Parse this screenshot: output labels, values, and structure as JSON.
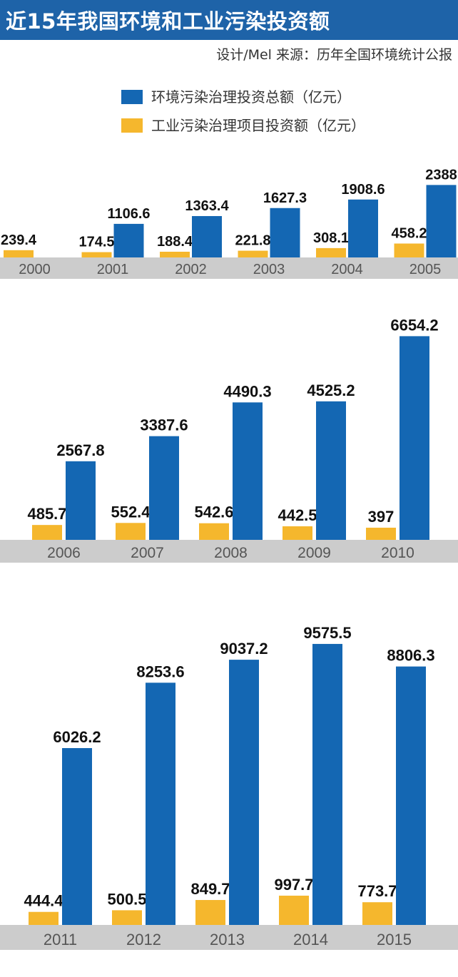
{
  "title": "近15年我国环境和工业污染投资额",
  "credit": "设计/Mel   来源：历年全国环境统计公报",
  "colors": {
    "total": "#1467b3",
    "industrial": "#f5b72d",
    "axis_band": "#cccccc",
    "title_bg": "#1e63a8"
  },
  "chart_data": [
    {
      "type": "bar",
      "categories": [
        "2000",
        "2001",
        "2002",
        "2003",
        "2004",
        "2005"
      ],
      "series": [
        {
          "name": "工业污染治理项目投资额（亿元）",
          "values": [
            239.4,
            174.5,
            188.4,
            221.8,
            308.1,
            458.2
          ],
          "labels": [
            "239.4",
            "174.5",
            "188.4",
            "221.8",
            "308.1",
            "458.2"
          ]
        },
        {
          "name": "环境污染治理投资总额（亿元）",
          "values": [
            null,
            1106.6,
            1363.4,
            1627.3,
            1908.6,
            2388
          ],
          "labels": [
            "",
            "1106.6",
            "1363.4",
            "1627.3",
            "1908.6",
            "2388"
          ]
        }
      ],
      "legend": {
        "position": "top"
      }
    },
    {
      "type": "bar",
      "categories": [
        "2006",
        "2007",
        "2008",
        "2009",
        "2010"
      ],
      "series": [
        {
          "name": "工业污染治理项目投资额（亿元）",
          "values": [
            485.7,
            552.4,
            542.6,
            442.5,
            397
          ],
          "labels": [
            "485.7",
            "552.4",
            "542.6",
            "442.5",
            "397"
          ]
        },
        {
          "name": "环境污染治理投资总额（亿元）",
          "values": [
            2567.8,
            3387.6,
            4490.3,
            4525.2,
            6654.2
          ],
          "labels": [
            "2567.8",
            "3387.6",
            "4490.3",
            "4525.2",
            "6654.2"
          ]
        }
      ]
    },
    {
      "type": "bar",
      "categories": [
        "2011",
        "2012",
        "2013",
        "2014",
        "2015"
      ],
      "series": [
        {
          "name": "工业污染治理项目投资额（亿元）",
          "values": [
            444.4,
            500.5,
            849.7,
            997.7,
            773.7
          ],
          "labels": [
            "444.4",
            "500.5",
            "849.7",
            "997.7",
            "773.7"
          ]
        },
        {
          "name": "环境污染治理投资总额（亿元）",
          "values": [
            6026.2,
            8253.6,
            9037.2,
            9575.5,
            8806.3
          ],
          "labels": [
            "6026.2",
            "8253.6",
            "9037.2",
            "9575.5",
            "8806.3"
          ]
        }
      ]
    }
  ]
}
